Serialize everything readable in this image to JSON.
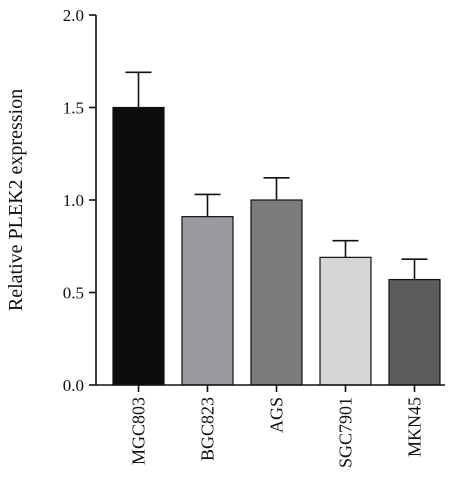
{
  "chart_data": {
    "type": "bar",
    "title": "",
    "xlabel": "",
    "ylabel": "Relative PLEK2 expression",
    "ylim": [
      0,
      2.0
    ],
    "yticks": [
      "0.0",
      "0.5",
      "1.0",
      "1.5",
      "2.0"
    ],
    "categories": [
      "MGC803",
      "BGC823",
      "AGS",
      "SGC7901",
      "MKN45"
    ],
    "values": [
      1.5,
      0.91,
      1.0,
      0.69,
      0.57
    ],
    "errors": [
      0.19,
      0.12,
      0.12,
      0.09,
      0.11
    ],
    "colors": [
      "#0d0d0d",
      "#9b9b9f",
      "#7c7c7c",
      "#d6d6d6",
      "#5c5c5c"
    ],
    "grid": false,
    "legend": "none"
  }
}
